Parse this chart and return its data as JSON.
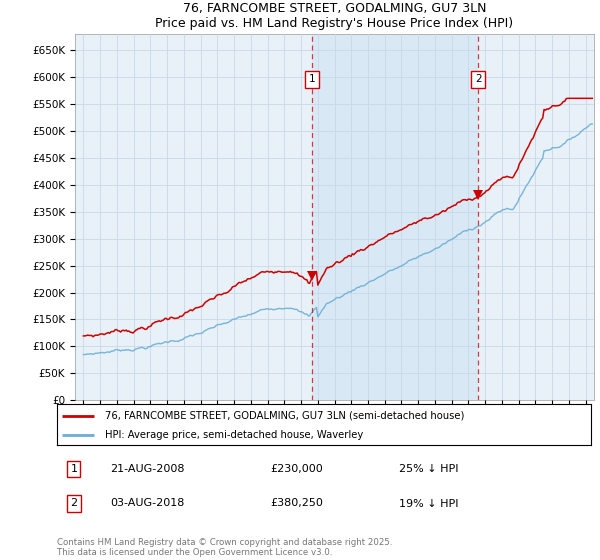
{
  "title": "76, FARNCOMBE STREET, GODALMING, GU7 3LN",
  "subtitle": "Price paid vs. HM Land Registry's House Price Index (HPI)",
  "ylabel_ticks": [
    "£0",
    "£50K",
    "£100K",
    "£150K",
    "£200K",
    "£250K",
    "£300K",
    "£350K",
    "£400K",
    "£450K",
    "£500K",
    "£550K",
    "£600K",
    "£650K"
  ],
  "ytick_values": [
    0,
    50000,
    100000,
    150000,
    200000,
    250000,
    300000,
    350000,
    400000,
    450000,
    500000,
    550000,
    600000,
    650000
  ],
  "ylim": [
    0,
    680000
  ],
  "hpi_color": "#6baed6",
  "price_color": "#cc0000",
  "shade_color": "#d6e8f5",
  "marker1_date": "21-AUG-2008",
  "marker1_price": 230000,
  "marker1_pct": "25% ↓ HPI",
  "marker1_x": 2008.64,
  "marker2_date": "03-AUG-2018",
  "marker2_price": 380250,
  "marker2_pct": "19% ↓ HPI",
  "marker2_x": 2018.59,
  "legend_line1": "76, FARNCOMBE STREET, GODALMING, GU7 3LN (semi-detached house)",
  "legend_line2": "HPI: Average price, semi-detached house, Waverley",
  "footnote": "Contains HM Land Registry data © Crown copyright and database right 2025.\nThis data is licensed under the Open Government Licence v3.0.",
  "plot_bg": "#ffffff",
  "grid_color": "#c8d8e8",
  "xmin": 1994.5,
  "xmax": 2025.5,
  "figwidth": 6.0,
  "figheight": 5.6,
  "dpi": 100
}
